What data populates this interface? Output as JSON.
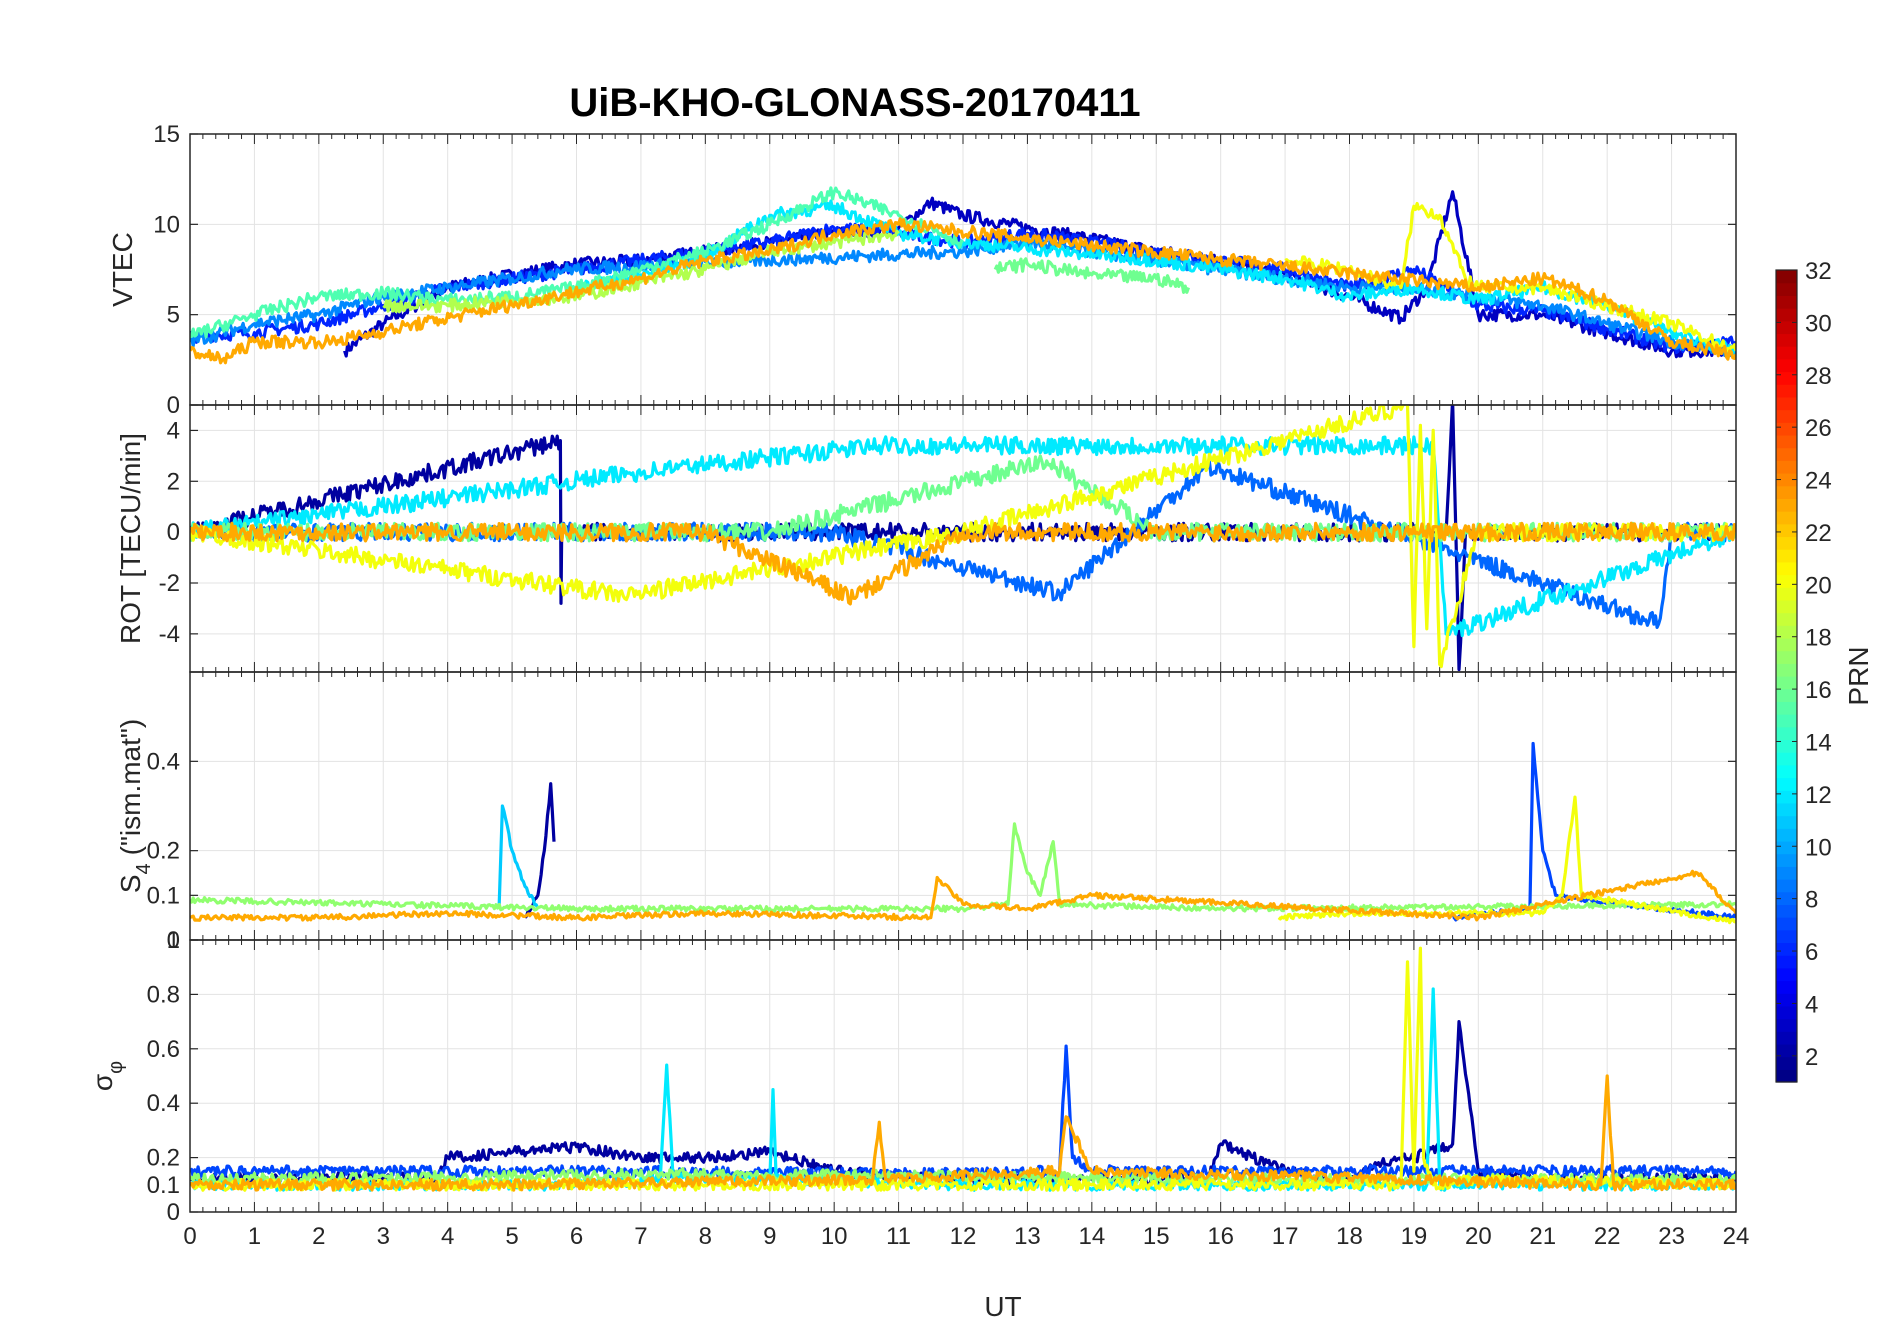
{
  "chart_data": {
    "type": "line",
    "title": "UiB-KHO-GLONASS-20170411",
    "xlabel": "UT",
    "x_range": [
      0,
      24
    ],
    "x_ticks": [
      "0",
      "1",
      "2",
      "3",
      "4",
      "5",
      "6",
      "7",
      "8",
      "9",
      "10",
      "11",
      "12",
      "13",
      "14",
      "15",
      "16",
      "17",
      "18",
      "19",
      "20",
      "21",
      "22",
      "23",
      "24"
    ],
    "grid": true,
    "colormap": "jet",
    "colorbar": {
      "label": "PRN",
      "range": [
        1,
        32
      ],
      "ticks": [
        "2",
        "4",
        "6",
        "8",
        "10",
        "12",
        "14",
        "16",
        "18",
        "20",
        "22",
        "24",
        "26",
        "28",
        "30",
        "32"
      ]
    },
    "panels": [
      {
        "ylabel": "VTEC",
        "ylim": [
          0,
          15
        ],
        "y_ticks": [
          "0",
          "5",
          "10",
          "15"
        ],
        "series": [
          {
            "prn": 3,
            "x": [
              2.4,
              3,
              4,
              5,
              6,
              7,
              8,
              9,
              10,
              11,
              11.5,
              12,
              13,
              14,
              15,
              16,
              17,
              18,
              18.8,
              19.2,
              19.6,
              20,
              21,
              22,
              23,
              24
            ],
            "y": [
              3.0,
              4.5,
              6.5,
              7.2,
              7.8,
              8.0,
              8.5,
              9.0,
              9.5,
              9.8,
              11.2,
              10.5,
              9.8,
              9.2,
              8.5,
              8.0,
              7.2,
              6.0,
              4.8,
              6.5,
              11.8,
              5.0,
              5.0,
              4.0,
              3.0,
              3.0
            ]
          },
          {
            "prn": 6,
            "x": [
              0,
              1,
              2,
              3,
              4,
              5,
              6,
              7,
              8,
              9,
              10,
              11,
              12,
              13,
              14,
              15,
              16,
              17,
              18,
              19,
              20,
              21,
              22,
              23,
              24
            ],
            "y": [
              3.8,
              4.0,
              4.5,
              5.5,
              6.5,
              7.0,
              7.5,
              8.0,
              8.5,
              9.0,
              9.8,
              9.5,
              9.0,
              9.5,
              9.0,
              8.5,
              8.0,
              7.5,
              6.5,
              7.5,
              5.5,
              5.2,
              4.2,
              3.2,
              3.5
            ]
          },
          {
            "prn": 9,
            "x": [
              0,
              1,
              2,
              3,
              4,
              5,
              5.8,
              12,
              13,
              14,
              15,
              16,
              17,
              18,
              19,
              20,
              21,
              22,
              23,
              24
            ],
            "y": [
              3.5,
              4.5,
              5.0,
              6.0,
              6.5,
              7.0,
              7.5,
              8.5,
              9.0,
              8.5,
              8.0,
              7.5,
              7.0,
              6.5,
              6.5,
              6.0,
              5.5,
              4.5,
              3.5,
              3.0
            ]
          },
          {
            "prn": 12,
            "x": [
              6,
              7,
              8,
              9,
              10,
              11,
              12,
              15,
              16,
              17,
              18,
              19,
              20,
              21,
              22,
              23,
              24
            ],
            "y": [
              6.5,
              7.2,
              8.2,
              10.5,
              11.0,
              9.5,
              9.0,
              8.0,
              7.5,
              7.0,
              6.0,
              6.5,
              5.8,
              6.5,
              5.5,
              4.0,
              3.0
            ]
          },
          {
            "prn": 15,
            "x": [
              0,
              1,
              2,
              3,
              4,
              5,
              6,
              7,
              8,
              9,
              10,
              11,
              12
            ],
            "y": [
              3.8,
              5.0,
              6.0,
              6.2,
              5.8,
              6.0,
              6.5,
              7.5,
              8.5,
              10.0,
              11.8,
              10.5,
              9.0
            ]
          },
          {
            "prn": 16,
            "x": [
              12.5,
              13,
              14,
              15,
              15.5
            ],
            "y": [
              7.5,
              7.8,
              7.2,
              7.0,
              6.5
            ]
          },
          {
            "prn": 18,
            "x": [
              3,
              4,
              5,
              6,
              7,
              8,
              9,
              10,
              11
            ],
            "y": [
              5.5,
              5.5,
              5.8,
              6.0,
              6.8,
              7.5,
              8.5,
              9.0,
              9.5
            ]
          },
          {
            "prn": 20,
            "x": [
              17,
              18,
              18.8,
              19,
              19.4,
              19.8,
              20,
              21,
              22,
              23,
              24
            ],
            "y": [
              8.0,
              7.5,
              6.5,
              11.0,
              10.5,
              7.0,
              6.5,
              6.5,
              5.5,
              4.5,
              3.0
            ]
          },
          {
            "prn": 23,
            "x": [
              0,
              0.5,
              1,
              2,
              2.2,
              7,
              8,
              9,
              10,
              11,
              20,
              21,
              22,
              23,
              24
            ],
            "y": [
              3.0,
              2.5,
              3.5,
              3.5,
              3.5,
              7.0,
              8.0,
              8.5,
              9.5,
              10.0,
              6.5,
              7.0,
              5.8,
              3.5,
              2.8
            ]
          }
        ]
      },
      {
        "ylabel": "ROT [TECU/min]",
        "ylim": [
          -5.5,
          5
        ],
        "y_ticks": [
          "-4",
          "-2",
          "0",
          "2",
          "4"
        ],
        "series": [
          {
            "prn": 2,
            "x": [
              0,
              5.75,
              5.76,
              5.77,
              8,
              13,
              17,
              19.5,
              19.6,
              19.7,
              19.8,
              24
            ],
            "y": [
              0,
              3.6,
              -2.8,
              0,
              0,
              0,
              0,
              0,
              5.2,
              -5.4,
              0,
              0
            ]
          },
          {
            "prn": 8,
            "x": [
              0,
              10,
              13.5,
              15.8,
              22.8,
              22.9,
              23,
              24
            ],
            "y": [
              0,
              0,
              -2.4,
              2.6,
              -3.6,
              -1.8,
              0,
              0
            ]
          },
          {
            "prn": 12,
            "x": [
              0,
              7.4,
              10.7,
              19.3,
              19.5,
              24
            ],
            "y": [
              0,
              2.5,
              3.4,
              3.4,
              -4.0,
              0
            ]
          },
          {
            "prn": 16,
            "x": [
              0,
              3,
              6,
              9,
              13.3,
              15,
              18,
              24
            ],
            "y": [
              0,
              0,
              0,
              0,
              2.8,
              0,
              0,
              0
            ]
          },
          {
            "prn": 20,
            "x": [
              0,
              6.8,
              12,
              18.9,
              19.0,
              19.1,
              19.2,
              19.3,
              19.4,
              20,
              24
            ],
            "y": [
              0,
              -2.5,
              0,
              5.0,
              -4.5,
              4.2,
              -3.8,
              4.0,
              -5.2,
              0,
              0
            ]
          },
          {
            "prn": 23,
            "x": [
              0,
              2,
              5,
              8,
              10.3,
              12,
              13,
              14,
              18,
              21,
              24
            ],
            "y": [
              0,
              0,
              0,
              0,
              -2.6,
              0,
              0,
              0,
              0,
              0,
              0
            ]
          }
        ]
      },
      {
        "ylabel": "S4 (\"ism.mat\")",
        "ylabel_main": "S",
        "ylabel_sub": "4",
        "ylabel_rest": "(\"ism.mat\")",
        "ylim": [
          0,
          0.6
        ],
        "y_ticks": [
          "0",
          "0.1",
          "0.2",
          "0.4"
        ],
        "series": [
          {
            "prn": 2,
            "x": [
              5.2,
              5.4,
              5.5,
              5.6,
              5.65
            ],
            "y": [
              0.05,
              0.1,
              0.2,
              0.35,
              0.22
            ]
          },
          {
            "prn": 7,
            "x": [
              19.6,
              20.2,
              20.8,
              20.85,
              21.0,
              21.2,
              24
            ],
            "y": [
              0.05,
              0.06,
              0.07,
              0.44,
              0.2,
              0.1,
              0.05
            ]
          },
          {
            "prn": 11,
            "x": [
              4.8,
              4.85,
              5.0,
              5.2,
              5.4
            ],
            "y": [
              0.08,
              0.3,
              0.2,
              0.12,
              0.07
            ]
          },
          {
            "prn": 17,
            "x": [
              0,
              3,
              6,
              9,
              12,
              12.7,
              12.8,
              13.0,
              13.2,
              13.4,
              13.5,
              16,
              24
            ],
            "y": [
              0.09,
              0.08,
              0.07,
              0.07,
              0.07,
              0.08,
              0.26,
              0.15,
              0.1,
              0.22,
              0.08,
              0.07,
              0.08
            ]
          },
          {
            "prn": 20,
            "x": [
              16.9,
              18,
              21.0,
              21.3,
              21.5,
              21.6,
              24
            ],
            "y": [
              0.05,
              0.06,
              0.06,
              0.1,
              0.32,
              0.1,
              0.04
            ]
          },
          {
            "prn": 23,
            "x": [
              0,
              2,
              4,
              6,
              8,
              11.5,
              11.6,
              12,
              13,
              14,
              20,
              23.4,
              24
            ],
            "y": [
              0.05,
              0.05,
              0.06,
              0.05,
              0.06,
              0.05,
              0.14,
              0.08,
              0.07,
              0.1,
              0.05,
              0.15,
              0.06
            ]
          }
        ]
      },
      {
        "ylabel": "σ φ",
        "ylabel_main": "σ",
        "ylabel_sub": "φ",
        "ylim": [
          0,
          1
        ],
        "y_ticks": [
          "0",
          "0.1",
          "0.2",
          "0.4",
          "0.6",
          "0.8",
          "1"
        ],
        "series": [
          {
            "prn": 2,
            "x": [
              0,
              3,
              3.8,
              4,
              5,
              6,
              7,
              8,
              9,
              10,
              11,
              12,
              14,
              15.8,
              16,
              16.5,
              17,
              17.5,
              18,
              18.5,
              19,
              19.6,
              19.7,
              20,
              21,
              22,
              24
            ],
            "y": [
              0.12,
              0.13,
              0.12,
              0.2,
              0.22,
              0.24,
              0.2,
              0.2,
              0.22,
              0.15,
              0.13,
              0.12,
              0.12,
              0.12,
              0.25,
              0.2,
              0.15,
              0.13,
              0.12,
              0.18,
              0.2,
              0.25,
              0.7,
              0.15,
              0.12,
              0.12,
              0.12
            ]
          },
          {
            "prn": 7,
            "x": [
              0,
              6,
              12,
              13.5,
              13.6,
              13.7,
              14,
              24
            ],
            "y": [
              0.15,
              0.15,
              0.14,
              0.15,
              0.61,
              0.2,
              0.15,
              0.15
            ]
          },
          {
            "prn": 12,
            "x": [
              0,
              6,
              7.3,
              7.4,
              7.5,
              9,
              9.05,
              9.1,
              12,
              19.2,
              19.3,
              19.4,
              24
            ],
            "y": [
              0.1,
              0.1,
              0.12,
              0.54,
              0.12,
              0.12,
              0.45,
              0.12,
              0.1,
              0.1,
              0.82,
              0.1,
              0.1
            ]
          },
          {
            "prn": 17,
            "x": [
              0,
              4,
              8,
              12,
              16,
              20,
              24
            ],
            "y": [
              0.12,
              0.13,
              0.14,
              0.13,
              0.12,
              0.12,
              0.12
            ]
          },
          {
            "prn": 20,
            "x": [
              0,
              18.8,
              18.9,
              19.0,
              19.1,
              19.15,
              19.3,
              20,
              24
            ],
            "y": [
              0.1,
              0.1,
              0.92,
              0.15,
              0.97,
              0.2,
              0.1,
              0.12,
              0.1
            ]
          },
          {
            "prn": 23,
            "x": [
              0,
              5,
              10.6,
              10.7,
              10.8,
              13.5,
              13.6,
              14,
              21.9,
              22.0,
              22.1,
              24
            ],
            "y": [
              0.1,
              0.1,
              0.12,
              0.33,
              0.12,
              0.15,
              0.35,
              0.15,
              0.1,
              0.5,
              0.1,
              0.1
            ]
          }
        ]
      }
    ]
  }
}
